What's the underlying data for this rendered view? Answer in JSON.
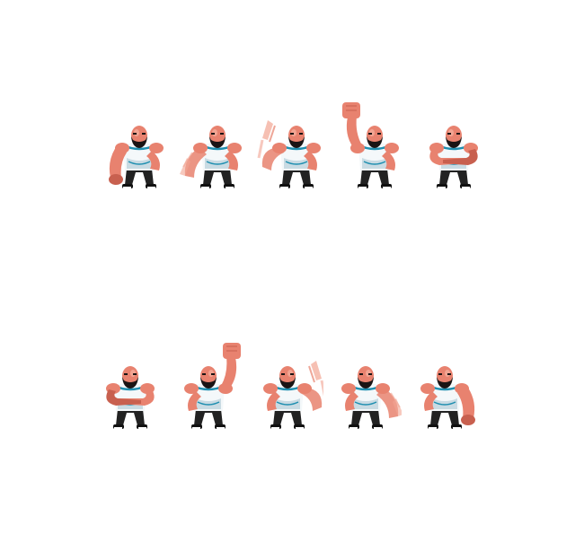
{
  "sprite_sheet": {
    "colors": {
      "skin": "#e8826f",
      "skin_light": "#f2a593",
      "skin_dark": "#c8604f",
      "shirt": "#f4f8fa",
      "shirt_shade": "#c9dbe3",
      "trim": "#1f8fb0",
      "hair": "#1a1414",
      "pants": "#222222",
      "shoes": "#111111"
    },
    "rows": [
      {
        "name": "row-top",
        "facing": "left",
        "frames": [
          {
            "pose": "arm-down-forward"
          },
          {
            "pose": "arm-swing-low-blur"
          },
          {
            "pose": "arm-swing-mid-blur"
          },
          {
            "pose": "arm-raised-fist"
          },
          {
            "pose": "arms-crossed"
          }
        ]
      },
      {
        "name": "row-bottom",
        "facing": "right",
        "frames": [
          {
            "pose": "arms-crossed"
          },
          {
            "pose": "arm-raised-fist"
          },
          {
            "pose": "arm-swing-mid-blur"
          },
          {
            "pose": "arm-swing-low-blur"
          },
          {
            "pose": "arm-down-forward"
          }
        ]
      }
    ]
  }
}
